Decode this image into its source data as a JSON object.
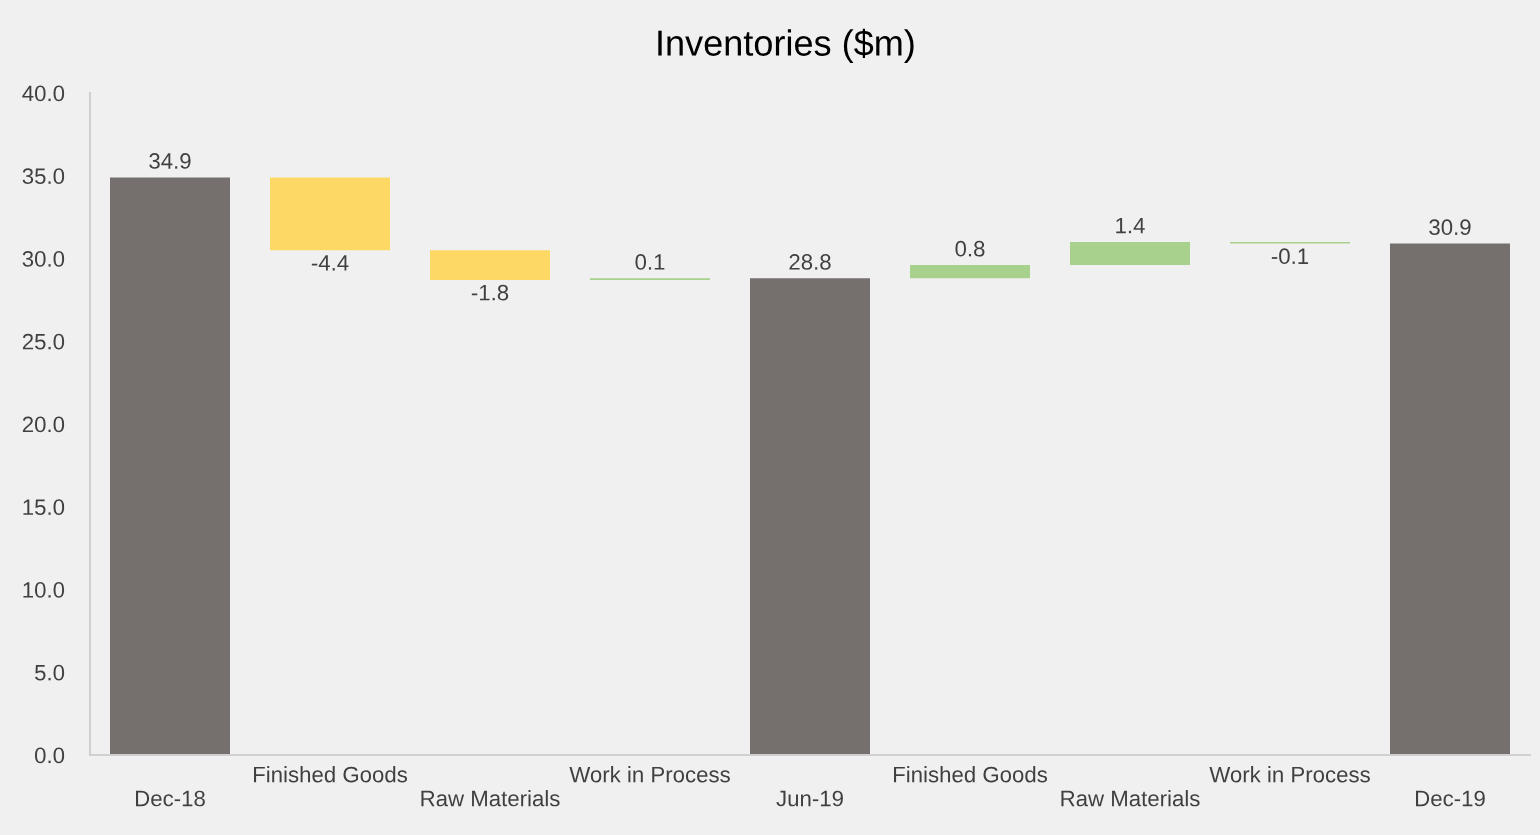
{
  "chart_data": {
    "type": "bar",
    "title": "Inventories ($m)",
    "categories": [
      "Dec-18",
      "Finished Goods",
      "Raw Materials",
      "Work in Process",
      "Jun-19",
      "Finished Goods",
      "Raw Materials",
      "Work in Process",
      "Dec-19"
    ],
    "values": [
      34.9,
      -4.4,
      -1.8,
      0.1,
      28.8,
      0.8,
      1.4,
      -0.1,
      30.9
    ],
    "base": [
      0,
      34.9,
      30.5,
      28.7,
      0,
      28.8,
      29.6,
      31.0,
      0
    ],
    "colors": [
      "#756f6e",
      "#fdd865",
      "#fdd865",
      "#a9d18e",
      "#756f6e",
      "#a9d18e",
      "#a9d18e",
      "#a9d18e",
      "#756f6e"
    ],
    "ylim": [
      0,
      40
    ],
    "yticks": [
      {
        "value": 0,
        "label": "0.0"
      },
      {
        "value": 5,
        "label": "5.0"
      },
      {
        "value": 10,
        "label": "10.0"
      },
      {
        "value": 15,
        "label": "15.0"
      },
      {
        "value": 20,
        "label": "20.0"
      },
      {
        "value": 25,
        "label": "25.0"
      },
      {
        "value": 30,
        "label": "30.0"
      },
      {
        "value": 35,
        "label": "35.0"
      },
      {
        "value": 40,
        "label": "40.0"
      }
    ],
    "data_labels": true,
    "grid": false
  }
}
